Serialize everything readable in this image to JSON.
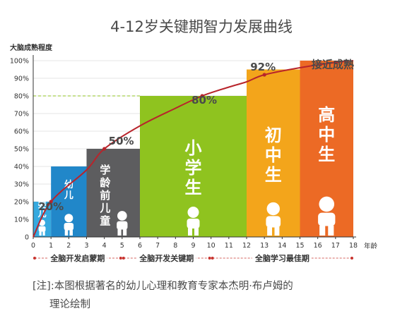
{
  "title": "4-12岁关键期智力发展曲线",
  "chart_data": {
    "type": "bar",
    "ylabel": "大脑成熟程度",
    "xlabel": "年龄",
    "ylim": [
      0,
      100
    ],
    "yticks": [
      "0",
      "10%",
      "20%",
      "30%",
      "40%",
      "50%",
      "60%",
      "70%",
      "80%",
      "90%",
      "100%"
    ],
    "x_ticks": [
      0,
      1,
      2,
      3,
      4,
      5,
      6,
      7,
      8,
      9,
      10,
      11,
      12,
      13,
      14,
      15,
      16,
      17,
      18
    ],
    "xlim": [
      0,
      18
    ],
    "bars": [
      {
        "label": "婴儿",
        "x_start": 0,
        "x_end": 1,
        "value": 20,
        "color": "#35a9df"
      },
      {
        "label": "幼儿",
        "x_start": 1,
        "x_end": 3,
        "value": 40,
        "color": "#2187c9"
      },
      {
        "label": "学龄前儿童",
        "x_start": 3,
        "x_end": 6,
        "value": 50,
        "color": "#5d5d5f"
      },
      {
        "label": "小学生",
        "x_start": 6,
        "x_end": 12,
        "value": 80,
        "color": "#8fc31f"
      },
      {
        "label": "初中生",
        "x_start": 12,
        "x_end": 15,
        "value": 95,
        "color": "#f3a51b"
      },
      {
        "label": "高中生",
        "x_start": 15,
        "x_end": 18,
        "value": 100,
        "color": "#ec6a25"
      }
    ],
    "curve": {
      "color": "#b8242b",
      "points": [
        [
          0,
          0
        ],
        [
          1,
          20
        ],
        [
          3,
          38
        ],
        [
          4,
          50
        ],
        [
          6,
          63
        ],
        [
          8,
          73
        ],
        [
          9.5,
          80
        ],
        [
          11,
          85
        ],
        [
          12,
          88
        ],
        [
          13,
          92
        ],
        [
          15,
          96
        ],
        [
          17,
          99
        ],
        [
          18,
          100
        ]
      ],
      "markers": [
        [
          1,
          20
        ],
        [
          4,
          50
        ],
        [
          9.5,
          80
        ],
        [
          13,
          92
        ],
        [
          17,
          99
        ]
      ]
    },
    "reference_line": {
      "value": 80,
      "x_end": 6,
      "color": "#8fc31f"
    },
    "annotations": [
      {
        "text": "20%",
        "x": 1,
        "y": 20
      },
      {
        "text": "50%",
        "x": 4,
        "y": 50
      },
      {
        "text": "80%",
        "x": 9.5,
        "y": 80
      },
      {
        "text": "92%",
        "x": 13,
        "y": 92
      },
      {
        "text": "接近成熟",
        "x": 17,
        "y": 99
      }
    ],
    "phases": [
      {
        "label": "全脑开发启蒙期",
        "x_start": 0,
        "x_end": 5
      },
      {
        "label": "全脑开发关键期",
        "x_start": 5,
        "x_end": 10
      },
      {
        "label": "全脑学习最佳期",
        "x_start": 10,
        "x_end": 18
      }
    ]
  },
  "note": {
    "line1": "[注]:本图根据著名的幼儿心理和教育专家本杰明·布卢姆的",
    "line2": "理论绘制"
  }
}
